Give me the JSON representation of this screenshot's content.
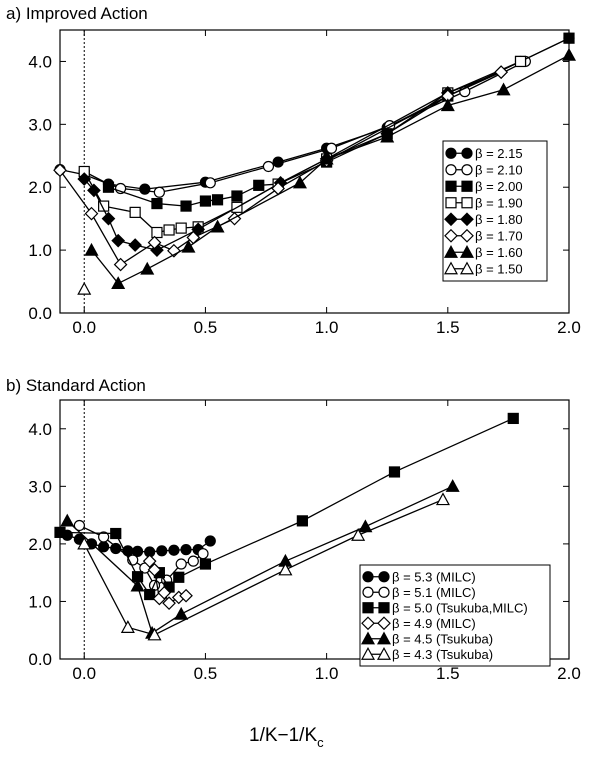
{
  "xlabel": {
    "main": "1/K−1/K",
    "sub": "c"
  },
  "chart_data": [
    {
      "type": "line",
      "title": "a) Improved Action",
      "xlabel": "1/K−1/Kc",
      "ylabel": "",
      "xlim": [
        -0.1,
        2.0
      ],
      "ylim": [
        0.0,
        4.5
      ],
      "xticks": [
        0.0,
        0.5,
        1.0,
        1.5,
        2.0
      ],
      "xtick_labels": [
        "0.0",
        "0.5",
        "1.0",
        "1.5",
        "2.0"
      ],
      "yticks": [
        0.0,
        1.0,
        2.0,
        3.0,
        4.0
      ],
      "ytick_labels": [
        "0.0",
        "1.0",
        "2.0",
        "3.0",
        "4.0"
      ],
      "zero_line": "dotted",
      "legend_position": "right",
      "series": [
        {
          "name": "β = 2.15",
          "marker": "circle",
          "fill": "filled",
          "x": [
            0.0,
            0.1,
            0.25,
            0.5,
            0.8,
            1.0,
            1.25,
            1.5,
            1.8,
            2.0
          ],
          "y": [
            2.25,
            2.05,
            1.97,
            2.08,
            2.4,
            2.62,
            2.95,
            3.45,
            4.0,
            4.37
          ]
        },
        {
          "name": "β = 2.10",
          "marker": "circle",
          "fill": "open",
          "x": [
            -0.1,
            0.0,
            0.15,
            0.31,
            0.52,
            0.76,
            1.02,
            1.26,
            1.57,
            1.82
          ],
          "y": [
            2.28,
            2.2,
            1.98,
            1.92,
            2.07,
            2.33,
            2.62,
            2.98,
            3.52,
            4.0
          ]
        },
        {
          "name": "β = 2.00",
          "marker": "square",
          "fill": "filled",
          "x": [
            0.1,
            0.3,
            0.42,
            0.5,
            0.55,
            0.63,
            0.72,
            0.8,
            1.0,
            1.25,
            1.5,
            1.8,
            2.0
          ],
          "y": [
            2.0,
            1.74,
            1.7,
            1.78,
            1.8,
            1.86,
            2.03,
            2.05,
            2.4,
            2.85,
            3.45,
            4.0,
            4.37
          ]
        },
        {
          "name": "β = 1.90",
          "marker": "square",
          "fill": "open",
          "x": [
            0.0,
            0.08,
            0.21,
            0.3,
            0.35,
            0.4,
            0.47,
            0.63,
            0.8,
            1.0,
            1.5,
            1.8
          ],
          "y": [
            2.25,
            1.7,
            1.6,
            1.28,
            1.32,
            1.35,
            1.37,
            1.68,
            2.05,
            2.45,
            3.5,
            4.0
          ]
        },
        {
          "name": "β = 1.80",
          "marker": "diamond",
          "fill": "filled",
          "x": [
            0.0,
            0.04,
            0.1,
            0.14,
            0.21,
            0.3,
            0.47,
            0.81,
            1.0,
            1.25,
            1.5,
            1.72
          ],
          "y": [
            2.13,
            1.95,
            1.5,
            1.15,
            1.08,
            1.0,
            1.33,
            2.07,
            2.45,
            2.85,
            3.5,
            3.83
          ]
        },
        {
          "name": "β = 1.70",
          "marker": "diamond",
          "fill": "open",
          "x": [
            -0.1,
            0.03,
            0.15,
            0.29,
            0.37,
            0.45,
            0.62,
            0.8,
            1.0,
            1.5,
            1.72
          ],
          "y": [
            2.27,
            1.58,
            0.77,
            1.12,
            0.99,
            1.2,
            1.5,
            1.98,
            2.42,
            3.45,
            3.83
          ]
        },
        {
          "name": "β = 1.60",
          "marker": "triangle",
          "fill": "filled",
          "x": [
            0.03,
            0.14,
            0.26,
            0.43,
            0.55,
            0.89,
            1.0,
            1.25,
            1.5,
            1.73,
            2.0
          ],
          "y": [
            1.0,
            0.47,
            0.7,
            1.05,
            1.37,
            2.07,
            2.45,
            2.8,
            3.3,
            3.55,
            4.1
          ]
        },
        {
          "name": "β = 1.50",
          "marker": "triangle",
          "fill": "open",
          "x": [
            0.0
          ],
          "y": [
            0.38
          ]
        }
      ]
    },
    {
      "type": "line",
      "title": "b) Standard Action",
      "xlabel": "1/K−1/Kc",
      "ylabel": "",
      "xlim": [
        -0.1,
        2.0
      ],
      "ylim": [
        0.0,
        4.5
      ],
      "xticks": [
        0.0,
        0.5,
        1.0,
        1.5,
        2.0
      ],
      "xtick_labels": [
        "0.0",
        "0.5",
        "1.0",
        "1.5",
        "2.0"
      ],
      "yticks": [
        0.0,
        1.0,
        2.0,
        3.0,
        4.0
      ],
      "ytick_labels": [
        "0.0",
        "1.0",
        "2.0",
        "3.0",
        "4.0"
      ],
      "zero_line": "dotted",
      "legend_position": "bottom-right",
      "series": [
        {
          "name": "β = 5.3 (MILC)",
          "marker": "circle",
          "fill": "filled",
          "x": [
            -0.07,
            -0.02,
            0.03,
            0.08,
            0.13,
            0.18,
            0.22,
            0.27,
            0.32,
            0.37,
            0.42,
            0.47,
            0.52
          ],
          "y": [
            2.15,
            2.08,
            2.0,
            1.95,
            1.92,
            1.88,
            1.87,
            1.86,
            1.88,
            1.89,
            1.9,
            1.9,
            2.05
          ]
        },
        {
          "name": "β = 5.1 (MILC)",
          "marker": "circle",
          "fill": "open",
          "x": [
            -0.02,
            0.08,
            0.2,
            0.25,
            0.29,
            0.34,
            0.4,
            0.45,
            0.49
          ],
          "y": [
            2.32,
            2.12,
            1.72,
            1.58,
            1.28,
            1.37,
            1.65,
            1.7,
            1.83
          ]
        },
        {
          "name": "β = 5.0 (Tsukuba,MILC)",
          "marker": "square",
          "fill": "filled",
          "x": [
            -0.1,
            0.13,
            0.22,
            0.27,
            0.31,
            0.35,
            0.39,
            0.5,
            0.9,
            1.28,
            1.77
          ],
          "y": [
            2.2,
            2.18,
            1.43,
            1.12,
            1.5,
            1.25,
            1.42,
            1.65,
            2.4,
            3.25,
            4.18
          ]
        },
        {
          "name": "β = 4.9 (MILC)",
          "marker": "diamond",
          "fill": "open",
          "x": [
            0.27,
            0.29,
            0.31,
            0.33,
            0.35,
            0.39,
            0.42
          ],
          "y": [
            1.7,
            1.55,
            1.05,
            1.15,
            0.97,
            1.07,
            1.1
          ]
        },
        {
          "name": "β = 4.5 (Tsukuba)",
          "marker": "triangle",
          "fill": "filled",
          "x": [
            -0.07,
            0.22,
            0.28,
            0.4,
            0.83,
            1.16,
            1.52
          ],
          "y": [
            2.4,
            1.27,
            0.45,
            0.78,
            1.7,
            2.3,
            3.0
          ]
        },
        {
          "name": "β = 4.3 (Tsukuba)",
          "marker": "triangle",
          "fill": "open",
          "x": [
            0.0,
            0.18,
            0.29,
            0.83,
            1.13,
            1.48
          ],
          "y": [
            2.0,
            0.55,
            0.42,
            1.55,
            2.15,
            2.77
          ]
        }
      ]
    }
  ]
}
